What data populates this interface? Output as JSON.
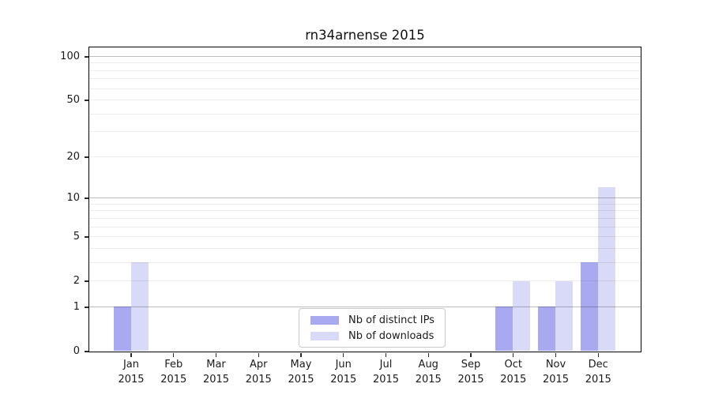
{
  "chart_data": {
    "type": "bar",
    "title": "rn34arnense 2015",
    "categories": [
      "Jan 2015",
      "Feb 2015",
      "Mar 2015",
      "Apr 2015",
      "May 2015",
      "Jun 2015",
      "Jul 2015",
      "Aug 2015",
      "Sep 2015",
      "Oct 2015",
      "Nov 2015",
      "Dec 2015"
    ],
    "x_tick_labels": [
      {
        "line1": "Jan",
        "line2": "2015"
      },
      {
        "line1": "Feb",
        "line2": "2015"
      },
      {
        "line1": "Mar",
        "line2": "2015"
      },
      {
        "line1": "Apr",
        "line2": "2015"
      },
      {
        "line1": "May",
        "line2": "2015"
      },
      {
        "line1": "Jun",
        "line2": "2015"
      },
      {
        "line1": "Jul",
        "line2": "2015"
      },
      {
        "line1": "Aug",
        "line2": "2015"
      },
      {
        "line1": "Sep",
        "line2": "2015"
      },
      {
        "line1": "Oct",
        "line2": "2015"
      },
      {
        "line1": "Nov",
        "line2": "2015"
      },
      {
        "line1": "Dec",
        "line2": "2015"
      }
    ],
    "series": [
      {
        "name": "Nb of distinct IPs",
        "color": "#a9a9f2",
        "values": [
          1,
          0,
          0,
          0,
          0,
          0,
          0,
          0,
          0,
          1,
          1,
          3
        ]
      },
      {
        "name": "Nb of downloads",
        "color": "#d9d9f8",
        "values": [
          3,
          0,
          0,
          0,
          0,
          0,
          0,
          0,
          0,
          2,
          2,
          12
        ]
      }
    ],
    "y_scale": "log1p",
    "y_ticks": [
      100,
      50,
      20,
      10,
      5,
      2,
      1,
      0
    ],
    "y_major_gridlines": [
      1,
      10,
      100
    ],
    "y_minor_gridlines": [
      2,
      3,
      4,
      5,
      6,
      7,
      8,
      9,
      20,
      30,
      40,
      50,
      60,
      70,
      80,
      90
    ],
    "ylim": [
      0,
      116
    ],
    "grid": true,
    "legend_position": "lower center"
  },
  "colors": {
    "background": "#ffffff",
    "axis_frame": "#000000",
    "tick": "#2a2a2a",
    "grid_major": "rgba(0,0,0,0.26)",
    "grid_minor": "rgba(0,0,0,0.075)",
    "legend_border": "#c9c9c9",
    "bar_distinct_ips": "#a9a9f2",
    "bar_downloads": "#d9d9f8"
  }
}
